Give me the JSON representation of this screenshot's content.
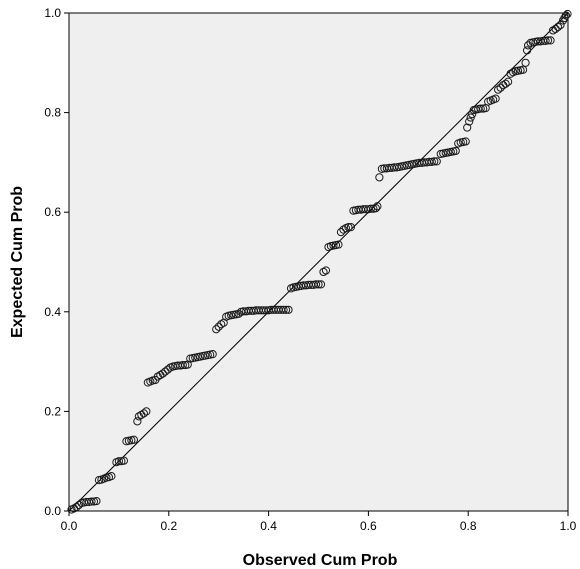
{
  "chart_data": {
    "type": "scatter",
    "title": "",
    "xlabel": "Observed Cum Prob",
    "ylabel": "Expected Cum Prob",
    "xlim": [
      0.0,
      1.0
    ],
    "ylim": [
      0.0,
      1.0
    ],
    "x_ticks": [
      "0.0",
      "0.2",
      "0.4",
      "0.6",
      "0.8",
      "1.0"
    ],
    "y_ticks": [
      "0.0",
      "0.2",
      "0.4",
      "0.6",
      "0.8",
      "1.0"
    ],
    "grid": false,
    "legend": "none",
    "colors": {
      "plot_background": "#efefef",
      "marker_stroke": "#1a1a1a",
      "reference_line": "#000000"
    },
    "reference_line": {
      "from": [
        0,
        0
      ],
      "to": [
        1,
        1
      ]
    },
    "series": [
      {
        "marker": "open-circle",
        "points": [
          [
            0.005,
            0.003
          ],
          [
            0.01,
            0.005
          ],
          [
            0.015,
            0.008
          ],
          [
            0.02,
            0.012
          ],
          [
            0.025,
            0.016
          ],
          [
            0.03,
            0.017
          ],
          [
            0.035,
            0.018
          ],
          [
            0.04,
            0.018
          ],
          [
            0.045,
            0.019
          ],
          [
            0.05,
            0.019
          ],
          [
            0.055,
            0.02
          ],
          [
            0.06,
            0.062
          ],
          [
            0.065,
            0.063
          ],
          [
            0.07,
            0.065
          ],
          [
            0.075,
            0.067
          ],
          [
            0.08,
            0.068
          ],
          [
            0.085,
            0.07
          ],
          [
            0.095,
            0.098
          ],
          [
            0.1,
            0.1
          ],
          [
            0.105,
            0.1
          ],
          [
            0.11,
            0.101
          ],
          [
            0.115,
            0.14
          ],
          [
            0.12,
            0.141
          ],
          [
            0.125,
            0.142
          ],
          [
            0.13,
            0.143
          ],
          [
            0.137,
            0.18
          ],
          [
            0.14,
            0.19
          ],
          [
            0.145,
            0.193
          ],
          [
            0.15,
            0.196
          ],
          [
            0.155,
            0.2
          ],
          [
            0.158,
            0.258
          ],
          [
            0.163,
            0.26
          ],
          [
            0.168,
            0.262
          ],
          [
            0.173,
            0.263
          ],
          [
            0.178,
            0.27
          ],
          [
            0.183,
            0.273
          ],
          [
            0.188,
            0.276
          ],
          [
            0.193,
            0.28
          ],
          [
            0.198,
            0.284
          ],
          [
            0.203,
            0.288
          ],
          [
            0.208,
            0.29
          ],
          [
            0.213,
            0.291
          ],
          [
            0.218,
            0.292
          ],
          [
            0.223,
            0.292
          ],
          [
            0.228,
            0.293
          ],
          [
            0.233,
            0.293
          ],
          [
            0.238,
            0.294
          ],
          [
            0.243,
            0.306
          ],
          [
            0.248,
            0.307
          ],
          [
            0.253,
            0.308
          ],
          [
            0.258,
            0.309
          ],
          [
            0.263,
            0.31
          ],
          [
            0.268,
            0.311
          ],
          [
            0.273,
            0.312
          ],
          [
            0.278,
            0.313
          ],
          [
            0.283,
            0.314
          ],
          [
            0.288,
            0.315
          ],
          [
            0.295,
            0.365
          ],
          [
            0.3,
            0.37
          ],
          [
            0.305,
            0.375
          ],
          [
            0.31,
            0.378
          ],
          [
            0.315,
            0.39
          ],
          [
            0.32,
            0.392
          ],
          [
            0.325,
            0.393
          ],
          [
            0.33,
            0.394
          ],
          [
            0.335,
            0.395
          ],
          [
            0.34,
            0.396
          ],
          [
            0.345,
            0.4
          ],
          [
            0.35,
            0.401
          ],
          [
            0.355,
            0.401
          ],
          [
            0.36,
            0.402
          ],
          [
            0.365,
            0.402
          ],
          [
            0.37,
            0.402
          ],
          [
            0.375,
            0.403
          ],
          [
            0.38,
            0.403
          ],
          [
            0.385,
            0.403
          ],
          [
            0.39,
            0.403
          ],
          [
            0.395,
            0.403
          ],
          [
            0.4,
            0.403
          ],
          [
            0.405,
            0.404
          ],
          [
            0.41,
            0.404
          ],
          [
            0.415,
            0.404
          ],
          [
            0.42,
            0.404
          ],
          [
            0.425,
            0.404
          ],
          [
            0.43,
            0.404
          ],
          [
            0.435,
            0.404
          ],
          [
            0.44,
            0.404
          ],
          [
            0.445,
            0.447
          ],
          [
            0.45,
            0.449
          ],
          [
            0.455,
            0.45
          ],
          [
            0.46,
            0.451
          ],
          [
            0.465,
            0.452
          ],
          [
            0.47,
            0.453
          ],
          [
            0.475,
            0.453
          ],
          [
            0.48,
            0.454
          ],
          [
            0.485,
            0.454
          ],
          [
            0.49,
            0.454
          ],
          [
            0.495,
            0.455
          ],
          [
            0.5,
            0.455
          ],
          [
            0.505,
            0.455
          ],
          [
            0.51,
            0.48
          ],
          [
            0.515,
            0.483
          ],
          [
            0.52,
            0.53
          ],
          [
            0.525,
            0.532
          ],
          [
            0.53,
            0.533
          ],
          [
            0.535,
            0.534
          ],
          [
            0.54,
            0.535
          ],
          [
            0.545,
            0.56
          ],
          [
            0.55,
            0.565
          ],
          [
            0.555,
            0.568
          ],
          [
            0.56,
            0.57
          ],
          [
            0.565,
            0.57
          ],
          [
            0.57,
            0.603
          ],
          [
            0.575,
            0.604
          ],
          [
            0.58,
            0.605
          ],
          [
            0.585,
            0.605
          ],
          [
            0.59,
            0.606
          ],
          [
            0.595,
            0.606
          ],
          [
            0.6,
            0.606
          ],
          [
            0.605,
            0.607
          ],
          [
            0.61,
            0.607
          ],
          [
            0.615,
            0.608
          ],
          [
            0.618,
            0.612
          ],
          [
            0.622,
            0.67
          ],
          [
            0.627,
            0.687
          ],
          [
            0.632,
            0.688
          ],
          [
            0.637,
            0.688
          ],
          [
            0.642,
            0.689
          ],
          [
            0.647,
            0.689
          ],
          [
            0.652,
            0.69
          ],
          [
            0.657,
            0.69
          ],
          [
            0.662,
            0.691
          ],
          [
            0.667,
            0.692
          ],
          [
            0.672,
            0.693
          ],
          [
            0.677,
            0.694
          ],
          [
            0.682,
            0.695
          ],
          [
            0.687,
            0.696
          ],
          [
            0.692,
            0.697
          ],
          [
            0.697,
            0.698
          ],
          [
            0.702,
            0.699
          ],
          [
            0.707,
            0.699
          ],
          [
            0.712,
            0.7
          ],
          [
            0.717,
            0.7
          ],
          [
            0.722,
            0.701
          ],
          [
            0.727,
            0.701
          ],
          [
            0.732,
            0.702
          ],
          [
            0.737,
            0.702
          ],
          [
            0.745,
            0.717
          ],
          [
            0.75,
            0.718
          ],
          [
            0.755,
            0.719
          ],
          [
            0.76,
            0.72
          ],
          [
            0.765,
            0.721
          ],
          [
            0.77,
            0.722
          ],
          [
            0.775,
            0.723
          ],
          [
            0.78,
            0.738
          ],
          [
            0.785,
            0.74
          ],
          [
            0.79,
            0.741
          ],
          [
            0.795,
            0.742
          ],
          [
            0.798,
            0.77
          ],
          [
            0.802,
            0.782
          ],
          [
            0.805,
            0.79
          ],
          [
            0.808,
            0.797
          ],
          [
            0.811,
            0.805
          ],
          [
            0.815,
            0.806
          ],
          [
            0.82,
            0.807
          ],
          [
            0.825,
            0.808
          ],
          [
            0.83,
            0.808
          ],
          [
            0.835,
            0.809
          ],
          [
            0.84,
            0.822
          ],
          [
            0.845,
            0.824
          ],
          [
            0.85,
            0.826
          ],
          [
            0.855,
            0.828
          ],
          [
            0.86,
            0.846
          ],
          [
            0.865,
            0.85
          ],
          [
            0.87,
            0.855
          ],
          [
            0.875,
            0.858
          ],
          [
            0.88,
            0.862
          ],
          [
            0.885,
            0.878
          ],
          [
            0.89,
            0.881
          ],
          [
            0.895,
            0.883
          ],
          [
            0.9,
            0.884
          ],
          [
            0.905,
            0.885
          ],
          [
            0.91,
            0.886
          ],
          [
            0.915,
            0.9
          ],
          [
            0.918,
            0.925
          ],
          [
            0.92,
            0.935
          ],
          [
            0.925,
            0.94
          ],
          [
            0.93,
            0.941
          ],
          [
            0.935,
            0.942
          ],
          [
            0.94,
            0.943
          ],
          [
            0.945,
            0.943
          ],
          [
            0.95,
            0.944
          ],
          [
            0.955,
            0.944
          ],
          [
            0.96,
            0.945
          ],
          [
            0.965,
            0.945
          ],
          [
            0.97,
            0.965
          ],
          [
            0.975,
            0.968
          ],
          [
            0.98,
            0.972
          ],
          [
            0.985,
            0.976
          ],
          [
            0.99,
            0.985
          ],
          [
            0.993,
            0.99
          ],
          [
            0.996,
            0.995
          ],
          [
            0.999,
            0.998
          ]
        ]
      }
    ]
  }
}
